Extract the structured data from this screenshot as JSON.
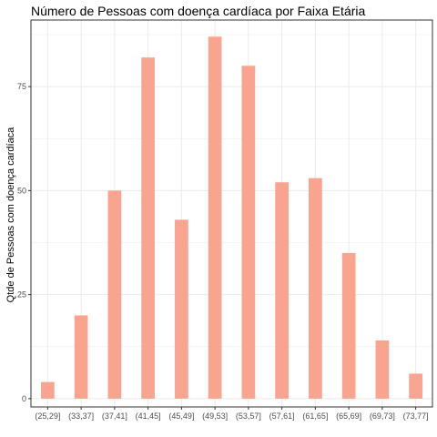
{
  "chart_data": {
    "type": "bar",
    "title": "Número de Pessoas com doença cardíaca por Faixa Etária",
    "xlabel": "",
    "ylabel": "Qtde de Pessoas com doença cardíaca",
    "categories": [
      "(25,29]",
      "(33,37]",
      "(37,41]",
      "(41,45]",
      "(45,49]",
      "(49,53]",
      "(53,57]",
      "(57,61]",
      "(61,65]",
      "(65,69]",
      "(69,73]",
      "(73,77]"
    ],
    "values": [
      4,
      20,
      50,
      82,
      43,
      87,
      80,
      52,
      53,
      35,
      14,
      6
    ],
    "ylim": [
      -2,
      91
    ],
    "yticks": [
      0,
      25,
      50,
      75
    ],
    "grid": true,
    "bar_color": "#f8a48e",
    "panel_border_color": "#333333",
    "grid_color": "#ebebeb"
  }
}
